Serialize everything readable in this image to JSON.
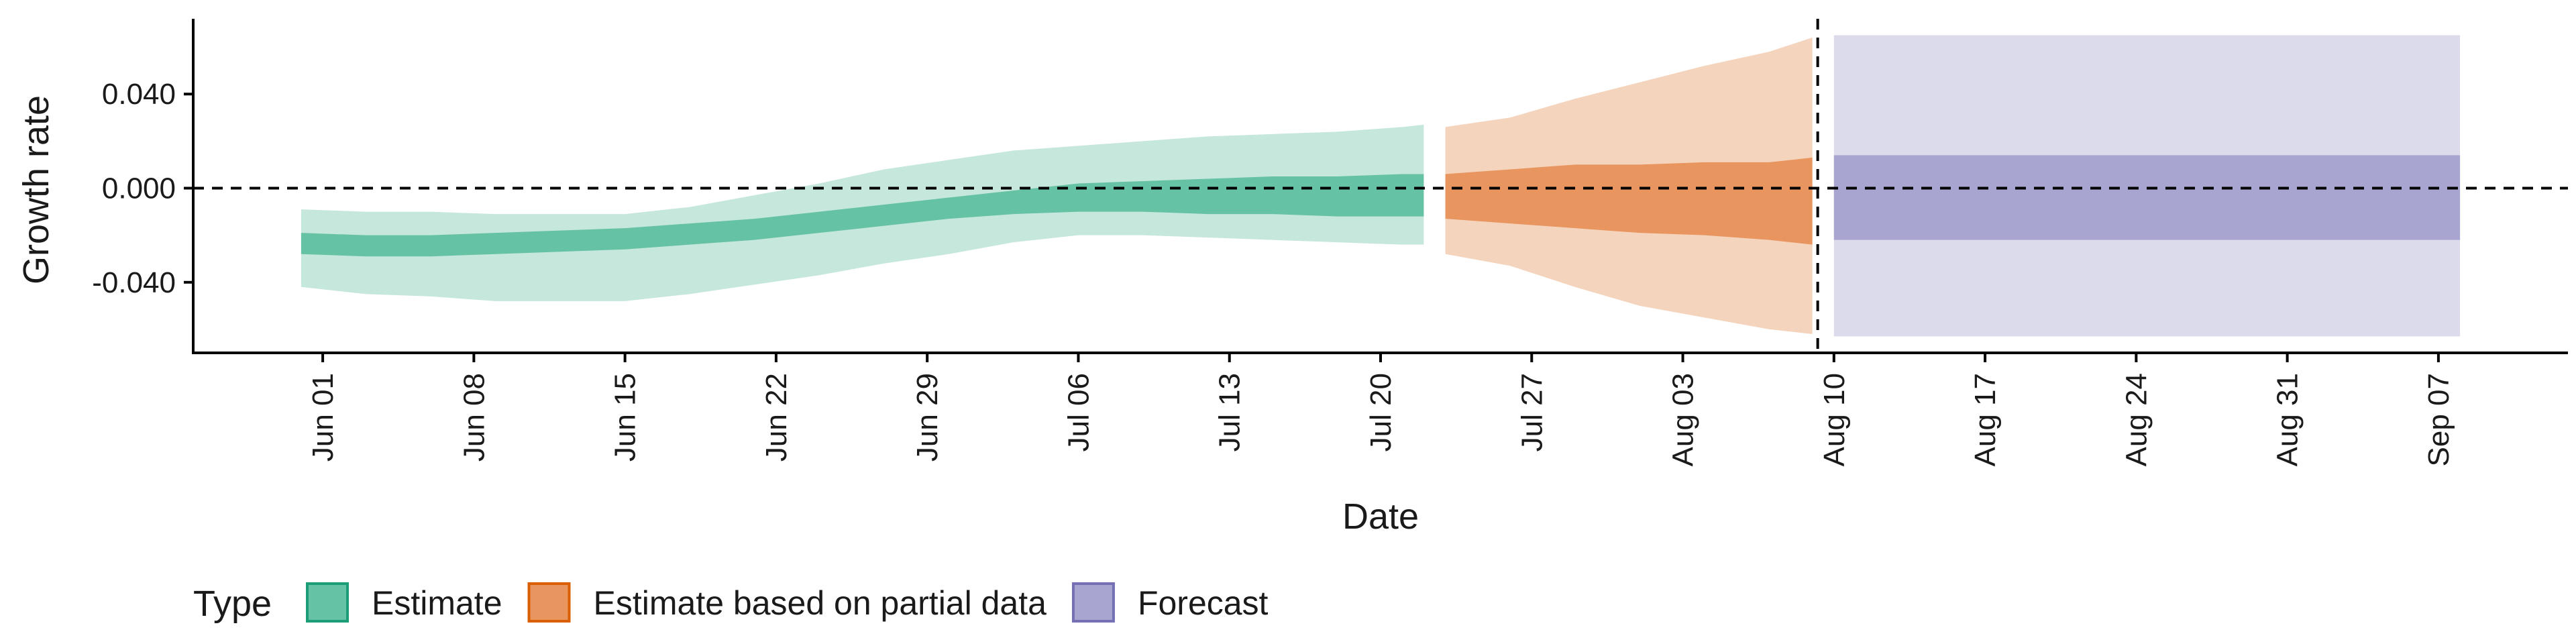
{
  "chart_data": {
    "type": "area",
    "xlabel": "Date",
    "ylabel": "Growth rate",
    "x_range": [
      "2020-05-26",
      "2020-09-13"
    ],
    "ylim": [
      -0.07,
      0.072
    ],
    "y_ticks": [
      0.04,
      0.0,
      -0.04
    ],
    "y_tick_labels": [
      "0.040",
      "0.000",
      "-0.040"
    ],
    "x_ticks": [
      "2020-06-01",
      "2020-06-08",
      "2020-06-15",
      "2020-06-22",
      "2020-06-29",
      "2020-07-06",
      "2020-07-13",
      "2020-07-20",
      "2020-07-27",
      "2020-08-03",
      "2020-08-10",
      "2020-08-17",
      "2020-08-24",
      "2020-08-31",
      "2020-09-07"
    ],
    "x_tick_labels": [
      "Jun 01",
      "Jun 08",
      "Jun 15",
      "Jun 22",
      "Jun 29",
      "Jul 06",
      "Jul 13",
      "Jul 20",
      "Jul 27",
      "Aug 03",
      "Aug 10",
      "Aug 17",
      "Aug 24",
      "Aug 31",
      "Sep 07"
    ],
    "reference_lines": {
      "horizontal_y": 0,
      "vertical_x": "2020-08-09",
      "style": "dashed"
    },
    "grid": false,
    "legend": {
      "title": "Type",
      "position": "bottom-left",
      "entries": [
        {
          "label": "Estimate",
          "color": "#66c2a5",
          "border": "#1b9e77"
        },
        {
          "label": "Estimate based on partial data",
          "color": "#e8955f",
          "border": "#d95f02"
        },
        {
          "label": "Forecast",
          "color": "#a9a5d1",
          "border": "#7570b3"
        }
      ]
    },
    "series": [
      {
        "name": "Estimate",
        "inner_color": "#66c2a5",
        "outer_color": "#c6e7dc",
        "x": [
          "2020-05-31",
          "2020-06-03",
          "2020-06-06",
          "2020-06-09",
          "2020-06-12",
          "2020-06-15",
          "2020-06-18",
          "2020-06-21",
          "2020-06-24",
          "2020-06-27",
          "2020-06-30",
          "2020-07-03",
          "2020-07-06",
          "2020-07-09",
          "2020-07-12",
          "2020-07-15",
          "2020-07-18",
          "2020-07-21",
          "2020-07-22"
        ],
        "outer_upper": [
          -0.009,
          -0.01,
          -0.01,
          -0.011,
          -0.011,
          -0.011,
          -0.008,
          -0.003,
          0.002,
          0.008,
          0.012,
          0.016,
          0.018,
          0.02,
          0.022,
          0.023,
          0.024,
          0.026,
          0.027
        ],
        "inner_upper": [
          -0.019,
          -0.02,
          -0.02,
          -0.019,
          -0.018,
          -0.017,
          -0.015,
          -0.013,
          -0.01,
          -0.007,
          -0.004,
          -0.001,
          0.002,
          0.003,
          0.004,
          0.005,
          0.005,
          0.006,
          0.006
        ],
        "inner_lower": [
          -0.028,
          -0.029,
          -0.029,
          -0.028,
          -0.027,
          -0.026,
          -0.024,
          -0.022,
          -0.019,
          -0.016,
          -0.013,
          -0.011,
          -0.01,
          -0.01,
          -0.011,
          -0.011,
          -0.012,
          -0.012,
          -0.012
        ],
        "outer_lower": [
          -0.042,
          -0.045,
          -0.046,
          -0.048,
          -0.048,
          -0.048,
          -0.045,
          -0.041,
          -0.037,
          -0.032,
          -0.028,
          -0.023,
          -0.02,
          -0.02,
          -0.021,
          -0.022,
          -0.023,
          -0.024,
          -0.024
        ]
      },
      {
        "name": "Estimate based on partial data",
        "inner_color": "#e8955f",
        "outer_color": "#f5d4bd",
        "x": [
          "2020-07-23",
          "2020-07-26",
          "2020-07-29",
          "2020-08-01",
          "2020-08-04",
          "2020-08-07",
          "2020-08-09"
        ],
        "outer_upper": [
          0.026,
          0.03,
          0.038,
          0.045,
          0.052,
          0.058,
          0.064
        ],
        "inner_upper": [
          0.006,
          0.008,
          0.01,
          0.01,
          0.011,
          0.011,
          0.013
        ],
        "inner_lower": [
          -0.013,
          -0.015,
          -0.017,
          -0.019,
          -0.02,
          -0.022,
          -0.024
        ],
        "outer_lower": [
          -0.028,
          -0.033,
          -0.042,
          -0.05,
          -0.055,
          -0.06,
          -0.062
        ]
      },
      {
        "name": "Forecast",
        "inner_color": "#a9a5d1",
        "outer_color": "#dcdbec",
        "x": [
          "2020-08-10",
          "2020-09-08"
        ],
        "outer_upper": [
          0.065,
          0.065
        ],
        "inner_upper": [
          0.014,
          0.014
        ],
        "inner_lower": [
          -0.022,
          -0.022
        ],
        "outer_lower": [
          -0.063,
          -0.063
        ]
      }
    ]
  }
}
